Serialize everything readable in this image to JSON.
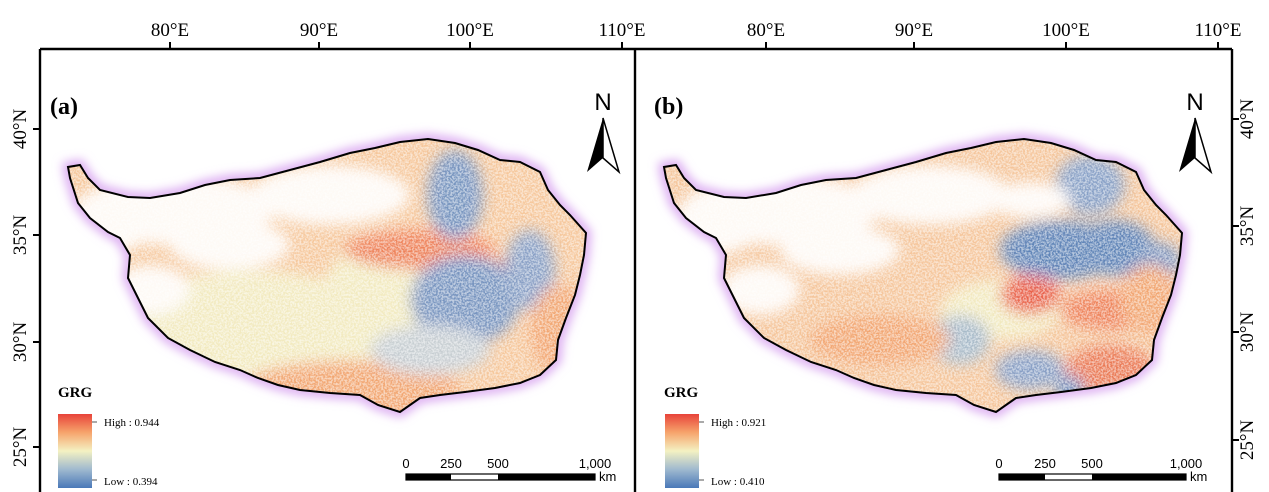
{
  "grid": {
    "lon_labels": [
      "80°E",
      "90°E",
      "100°E",
      "110°E"
    ],
    "lat_labels": [
      "40°N",
      "35°N",
      "30°N",
      "25°N"
    ]
  },
  "panels": [
    {
      "id": "a",
      "label": "(a)",
      "north_letter": "N",
      "legend": {
        "title": "GRG",
        "high_label": "High : 0.944",
        "low_label": "Low : 0.394",
        "high_value": 0.944,
        "low_value": 0.394,
        "ramp_colors": [
          "#e8433a",
          "#f6a46c",
          "#f4f1c2",
          "#9fb9cf",
          "#4a78b8"
        ]
      },
      "scale_bar": {
        "ticks": [
          "0",
          "250",
          "500",
          "1,000"
        ],
        "unit": "km"
      }
    },
    {
      "id": "b",
      "label": "(b)",
      "north_letter": "N",
      "legend": {
        "title": "GRG",
        "high_label": "High : 0.921",
        "low_label": "Low : 0.410",
        "high_value": 0.921,
        "low_value": 0.41,
        "ramp_colors": [
          "#e8433a",
          "#f6a46c",
          "#f4f1c2",
          "#9fb9cf",
          "#4a78b8"
        ]
      },
      "scale_bar": {
        "ticks": [
          "0",
          "250",
          "500",
          "1,000"
        ],
        "unit": "km"
      }
    }
  ],
  "colors": {
    "frame": "#000000",
    "halo": "#d9a6f0",
    "red": "#e8553f",
    "orange": "#f5a36a",
    "cream": "#f2eec4",
    "blue": "#5d86c0"
  }
}
